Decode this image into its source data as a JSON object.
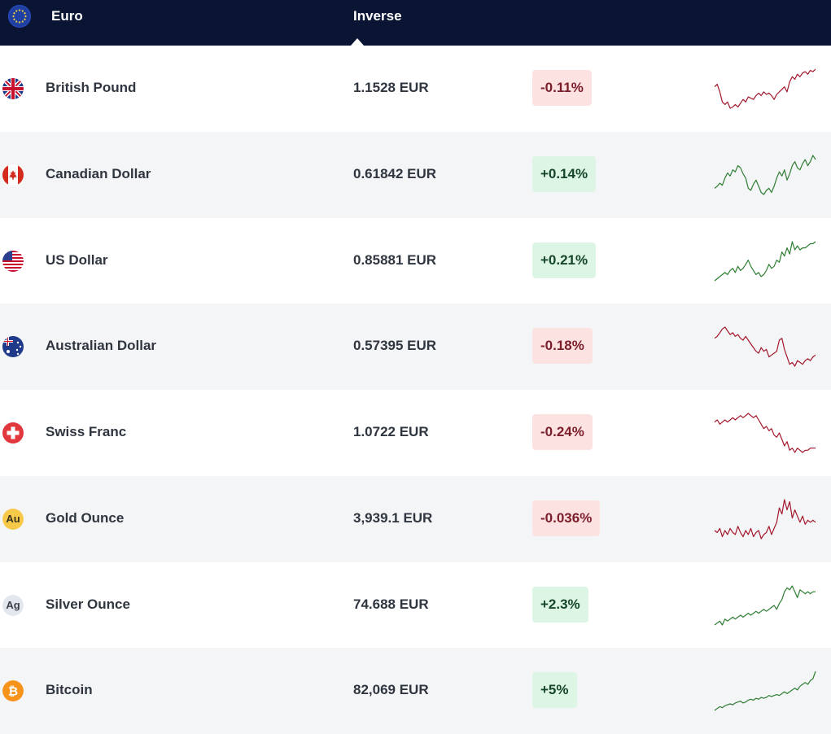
{
  "header": {
    "base_currency": "Euro",
    "column_label": "Inverse",
    "base_flag_icon": "eu-flag-icon"
  },
  "colors": {
    "header_bg": "#0a1433",
    "negative_bg": "#fde2e2",
    "negative_text": "#7a1e2a",
    "positive_bg": "#ddf5e4",
    "positive_text": "#16462a",
    "negative_line": "#a3172b",
    "positive_line": "#2e7d32"
  },
  "rows": [
    {
      "name": "British Pound",
      "price": "1.1528 EUR",
      "change": "-0.11%",
      "direction": "down",
      "icon": "uk-flag-icon",
      "trend": [
        62,
        64,
        58,
        50,
        48,
        50,
        45,
        46,
        48,
        46,
        49,
        52,
        50,
        54,
        53,
        52,
        55,
        57,
        55,
        58,
        56,
        57,
        55,
        52,
        56,
        58,
        60,
        62,
        58,
        66,
        70,
        68,
        72,
        70,
        73,
        74,
        72,
        75,
        74,
        76
      ]
    },
    {
      "name": "Canadian Dollar",
      "price": "0.61842 EUR",
      "change": "+0.14%",
      "direction": "up",
      "icon": "canada-flag-icon",
      "trend": [
        30,
        32,
        35,
        33,
        40,
        45,
        42,
        48,
        46,
        52,
        50,
        44,
        40,
        30,
        28,
        34,
        38,
        32,
        26,
        24,
        28,
        30,
        26,
        32,
        40,
        46,
        42,
        48,
        38,
        44,
        52,
        56,
        50,
        48,
        54,
        58,
        52,
        56,
        62,
        58
      ]
    },
    {
      "name": "US Dollar",
      "price": "0.85881 EUR",
      "change": "+0.21%",
      "direction": "up",
      "icon": "us-flag-icon",
      "trend": [
        30,
        32,
        34,
        36,
        38,
        36,
        40,
        42,
        38,
        44,
        40,
        42,
        46,
        50,
        44,
        40,
        36,
        38,
        34,
        36,
        40,
        46,
        42,
        44,
        50,
        48,
        58,
        54,
        62,
        56,
        68,
        60,
        64,
        60,
        62,
        62,
        64,
        66,
        66,
        68
      ]
    },
    {
      "name": "Australian Dollar",
      "price": "0.57395 EUR",
      "change": "-0.18%",
      "direction": "down",
      "icon": "australia-flag-icon",
      "trend": [
        60,
        62,
        66,
        70,
        72,
        68,
        64,
        66,
        62,
        64,
        60,
        58,
        62,
        58,
        54,
        50,
        46,
        44,
        50,
        46,
        48,
        40,
        42,
        44,
        46,
        58,
        60,
        48,
        40,
        32,
        34,
        30,
        36,
        34,
        32,
        36,
        38,
        36,
        40,
        42
      ]
    },
    {
      "name": "Swiss Franc",
      "price": "1.0722 EUR",
      "change": "-0.24%",
      "direction": "down",
      "icon": "switzerland-flag-icon",
      "trend": [
        64,
        66,
        62,
        64,
        66,
        64,
        66,
        68,
        66,
        68,
        70,
        68,
        70,
        72,
        70,
        68,
        70,
        66,
        62,
        58,
        60,
        56,
        58,
        52,
        50,
        54,
        48,
        42,
        46,
        38,
        40,
        36,
        40,
        38,
        36,
        38,
        38,
        40,
        40,
        40
      ]
    },
    {
      "name": "Gold Ounce",
      "price": "3,939.1 EUR",
      "change": "-0.036%",
      "direction": "down",
      "icon": "gold-coin-icon",
      "trend": [
        50,
        48,
        52,
        44,
        50,
        46,
        52,
        48,
        46,
        54,
        48,
        44,
        50,
        46,
        52,
        44,
        48,
        50,
        42,
        46,
        48,
        54,
        46,
        52,
        58,
        72,
        66,
        80,
        70,
        78,
        62,
        70,
        64,
        58,
        64,
        56,
        60,
        58,
        60,
        58
      ]
    },
    {
      "name": "Silver Ounce",
      "price": "74.688 EUR",
      "change": "+2.3%",
      "direction": "up",
      "icon": "silver-coin-icon",
      "trend": [
        36,
        38,
        40,
        36,
        42,
        40,
        42,
        44,
        42,
        44,
        46,
        44,
        46,
        48,
        46,
        48,
        50,
        48,
        50,
        52,
        50,
        52,
        54,
        56,
        52,
        58,
        62,
        70,
        74,
        72,
        76,
        70,
        64,
        72,
        70,
        68,
        70,
        68,
        70,
        70
      ]
    },
    {
      "name": "Bitcoin",
      "price": "82,069 EUR",
      "change": "+5%",
      "direction": "up",
      "icon": "bitcoin-icon",
      "trend": [
        38,
        40,
        42,
        41,
        43,
        44,
        45,
        44,
        46,
        47,
        48,
        46,
        47,
        49,
        50,
        49,
        51,
        50,
        52,
        51,
        52,
        54,
        53,
        54,
        55,
        54,
        56,
        58,
        56,
        58,
        60,
        62,
        60,
        64,
        66,
        68,
        66,
        70,
        72,
        80
      ]
    }
  ]
}
